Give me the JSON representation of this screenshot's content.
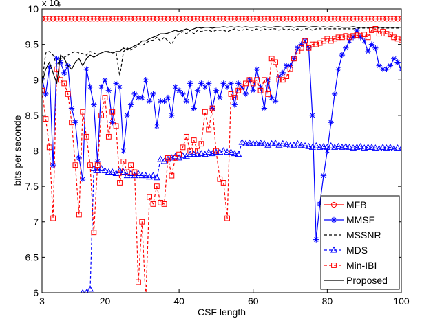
{
  "chart_data": {
    "type": "line",
    "title": "",
    "xlabel": "CSF length",
    "ylabel": "bits per seconde",
    "y_multiplier_label": "x 10",
    "y_multiplier_exponent": "6",
    "xlim": [
      3,
      100
    ],
    "ylim": [
      6000000,
      10000000
    ],
    "xticks": [
      3,
      20,
      40,
      60,
      80,
      100
    ],
    "yticks": [
      6000000,
      6500000,
      7000000,
      7500000,
      8000000,
      8500000,
      9000000,
      9500000,
      10000000
    ],
    "ytick_labels": [
      "6",
      "6.5",
      "7",
      "7.5",
      "8",
      "8.5",
      "9",
      "9.5",
      "10"
    ],
    "grid": false,
    "legend_position": "bottom-right",
    "x": [
      3,
      4,
      5,
      6,
      7,
      8,
      9,
      10,
      11,
      12,
      13,
      14,
      15,
      16,
      17,
      18,
      19,
      20,
      21,
      22,
      23,
      24,
      25,
      26,
      27,
      28,
      29,
      30,
      31,
      32,
      33,
      34,
      35,
      36,
      37,
      38,
      39,
      40,
      41,
      42,
      43,
      44,
      45,
      46,
      47,
      48,
      49,
      50,
      51,
      52,
      53,
      54,
      55,
      56,
      57,
      58,
      59,
      60,
      61,
      62,
      63,
      64,
      65,
      66,
      67,
      68,
      69,
      70,
      71,
      72,
      73,
      74,
      75,
      76,
      77,
      78,
      79,
      80,
      81,
      82,
      83,
      84,
      85,
      86,
      87,
      88,
      89,
      90,
      91,
      92,
      93,
      94,
      95,
      96,
      97,
      98,
      99,
      100
    ],
    "series": [
      {
        "name": "MFB",
        "color": "#ff0000",
        "dash": "solid",
        "marker": "circle",
        "values": [
          9860000,
          9860000,
          9860000,
          9860000,
          9860000,
          9860000,
          9860000,
          9860000,
          9860000,
          9860000,
          9860000,
          9860000,
          9860000,
          9860000,
          9860000,
          9860000,
          9860000,
          9860000,
          9860000,
          9860000,
          9860000,
          9860000,
          9860000,
          9860000,
          9860000,
          9860000,
          9860000,
          9860000,
          9860000,
          9860000,
          9860000,
          9860000,
          9860000,
          9860000,
          9860000,
          9860000,
          9860000,
          9860000,
          9860000,
          9860000,
          9860000,
          9860000,
          9860000,
          9860000,
          9860000,
          9860000,
          9860000,
          9860000,
          9860000,
          9860000,
          9860000,
          9860000,
          9860000,
          9860000,
          9860000,
          9860000,
          9860000,
          9860000,
          9860000,
          9860000,
          9860000,
          9860000,
          9860000,
          9860000,
          9860000,
          9860000,
          9860000,
          9860000,
          9860000,
          9860000,
          9860000,
          9860000,
          9860000,
          9860000,
          9860000,
          9860000,
          9860000,
          9860000,
          9860000,
          9860000,
          9860000,
          9860000,
          9860000,
          9860000,
          9860000,
          9860000,
          9860000,
          9860000,
          9860000,
          9860000,
          9860000,
          9860000,
          9860000,
          9860000,
          9860000,
          9860000,
          9860000,
          9860000
        ]
      },
      {
        "name": "MMSE",
        "color": "#0000ff",
        "dash": "solid",
        "marker": "star",
        "values": [
          9020000,
          8800000,
          9180000,
          7800000,
          9300000,
          9250000,
          9100000,
          9200000,
          8600000,
          8400000,
          7900000,
          7600000,
          9150000,
          8900000,
          8650000,
          7850000,
          8900000,
          9000000,
          8850000,
          8400000,
          8950000,
          8900000,
          8000000,
          8500000,
          8650000,
          8800000,
          8750000,
          8750000,
          9000000,
          8700000,
          8800000,
          8350000,
          8700000,
          8700000,
          8750000,
          8500000,
          8900000,
          8850000,
          8800000,
          8700000,
          8950000,
          8600000,
          8850000,
          8950000,
          8900000,
          8950000,
          8600000,
          8850000,
          8750000,
          8950000,
          8900000,
          8950000,
          8650000,
          8950000,
          8900000,
          8800000,
          9000000,
          8850000,
          9150000,
          8900000,
          8600000,
          9000000,
          8750000,
          8700000,
          9050000,
          9100000,
          9200000,
          9200000,
          9300000,
          9450000,
          9500000,
          9550000,
          9450000,
          8500000,
          6750000,
          7250000,
          7650000,
          8000000,
          8400000,
          8800000,
          9150000,
          9350000,
          9450000,
          9550000,
          9600000,
          9700000,
          9600000,
          9550000,
          9400000,
          9500000,
          9450000,
          9200000,
          9150000,
          9150000,
          9200000,
          9300000,
          9250000,
          9150000
        ]
      },
      {
        "name": "MSSNR",
        "color": "#000000",
        "dash": "dashed",
        "marker": "none",
        "values": [
          8950000,
          9380000,
          9400000,
          9350000,
          9200000,
          9300000,
          9320000,
          9350000,
          9380000,
          9400000,
          9380000,
          9370000,
          9350000,
          9400000,
          9380000,
          9360000,
          9380000,
          9400000,
          9390000,
          9380000,
          9390000,
          9050000,
          9400000,
          9450000,
          9420000,
          9450000,
          9500000,
          9480000,
          9520000,
          9550000,
          9560000,
          9600000,
          9550000,
          9600000,
          9550000,
          9500000,
          9600000,
          9650000,
          9680000,
          9650000,
          9700000,
          9650000,
          9700000,
          9680000,
          9700000,
          9700000,
          9680000,
          9700000,
          9700000,
          9700000,
          9680000,
          9700000,
          9720000,
          9700000,
          9700000,
          9720000,
          9700000,
          9700000,
          9720000,
          9700000,
          9720000,
          9700000,
          9720000,
          9720000,
          9700000,
          9720000,
          9700000,
          9720000,
          9700000,
          9720000,
          9700000,
          9720000,
          9720000,
          9700000,
          9720000,
          9720000,
          9720000,
          9720000,
          9720000,
          9720000,
          9720000,
          9720000,
          9720000,
          9720000,
          9720000,
          9730000,
          9730000,
          9730000,
          9730000,
          9730000,
          9730000,
          9730000,
          9730000,
          9730000,
          9730000,
          9730000,
          9730000,
          9730000
        ]
      },
      {
        "name": "MDS",
        "color": "#0000ff",
        "dash": "dashed",
        "marker": "triangle",
        "values": [
          null,
          null,
          null,
          null,
          null,
          null,
          null,
          null,
          null,
          null,
          null,
          6000000,
          6000000,
          6050000,
          7750000,
          7720000,
          7750000,
          7720000,
          7700000,
          7700000,
          7680000,
          7720000,
          7700000,
          7650000,
          7680000,
          7650000,
          7680000,
          7650000,
          7650000,
          7630000,
          7650000,
          7620000,
          7880000,
          7850000,
          7880000,
          7900000,
          7920000,
          7900000,
          7930000,
          7920000,
          7950000,
          7950000,
          7950000,
          7960000,
          7950000,
          7980000,
          7960000,
          7980000,
          7980000,
          8000000,
          7980000,
          7980000,
          7960000,
          7950000,
          8120000,
          8100000,
          8110000,
          8100000,
          8100000,
          8110000,
          8100000,
          8080000,
          8100000,
          8110000,
          8080000,
          8100000,
          8090000,
          8070000,
          8080000,
          8100000,
          8080000,
          8070000,
          8060000,
          8050000,
          8070000,
          8050000,
          8060000,
          8050000,
          8070000,
          8050000,
          8060000,
          8050000,
          8060000,
          8050000,
          8040000,
          8050000,
          8060000,
          8040000,
          8050000,
          8050000,
          8040000,
          8030000,
          8050000,
          8040000,
          8050000,
          8030000,
          8040000,
          8030000
        ]
      },
      {
        "name": "Min-IBI",
        "color": "#ff0000",
        "dash": "dashed",
        "marker": "square",
        "values": [
          8850000,
          8450000,
          8050000,
          7050000,
          9150000,
          9000000,
          8950000,
          8800000,
          8400000,
          7800000,
          7100000,
          8550000,
          8200000,
          7800000,
          6850000,
          7800000,
          8500000,
          8750000,
          8200000,
          8550000,
          8350000,
          7550000,
          7850000,
          7700000,
          7800000,
          7700000,
          6150000,
          7000000,
          5900000,
          7350000,
          7250000,
          7500000,
          7270000,
          7250000,
          7900000,
          7650000,
          7900000,
          7950000,
          8050000,
          8200000,
          8000000,
          8150000,
          8000000,
          8100000,
          8550000,
          8300000,
          8600000,
          8000000,
          7600000,
          7550000,
          7050000,
          8800000,
          8750000,
          8850000,
          8900000,
          8950000,
          9000000,
          8950000,
          9000000,
          8850000,
          9000000,
          8800000,
          9300000,
          9250000,
          9000000,
          9000000,
          9050000,
          9150000,
          9300000,
          9400000,
          9450000,
          9550000,
          9450000,
          9500000,
          9500000,
          9520000,
          9550000,
          9580000,
          9550000,
          9580000,
          9600000,
          9600000,
          9620000,
          9600000,
          9620000,
          9630000,
          9620000,
          9640000,
          9600000,
          9700000,
          9720000,
          9650000,
          9680000,
          9650000,
          9640000,
          9600000,
          9580000,
          9560000
        ]
      },
      {
        "name": "Proposed",
        "color": "#000000",
        "dash": "solid",
        "marker": "none",
        "values": [
          8950000,
          9150000,
          9250000,
          9100000,
          8950000,
          9350000,
          9300000,
          9200000,
          9150000,
          9250000,
          9300000,
          9200000,
          9300000,
          9350000,
          9320000,
          9350000,
          9380000,
          9400000,
          9400000,
          9380000,
          9400000,
          9400000,
          9450000,
          9420000,
          9450000,
          9480000,
          9500000,
          9550000,
          9550000,
          9580000,
          9600000,
          9620000,
          9650000,
          9650000,
          9660000,
          9680000,
          9700000,
          9680000,
          9700000,
          9720000,
          9700000,
          9720000,
          9740000,
          9730000,
          9740000,
          9740000,
          9730000,
          9740000,
          9740000,
          9750000,
          9740000,
          9750000,
          9740000,
          9750000,
          9740000,
          9750000,
          9740000,
          9740000,
          9750000,
          9740000,
          9750000,
          9740000,
          9740000,
          9750000,
          9750000,
          9740000,
          9750000,
          9750000,
          9740000,
          9750000,
          9750000,
          9750000,
          9740000,
          9750000,
          9750000,
          9740000,
          9750000,
          9740000,
          9750000,
          9740000,
          9750000,
          9740000,
          9740000,
          9740000,
          9750000,
          9740000,
          9740000,
          9740000,
          9740000,
          9740000,
          9740000,
          9740000,
          9740000,
          9740000,
          9740000,
          9740000,
          9740000,
          9740000
        ]
      }
    ]
  }
}
